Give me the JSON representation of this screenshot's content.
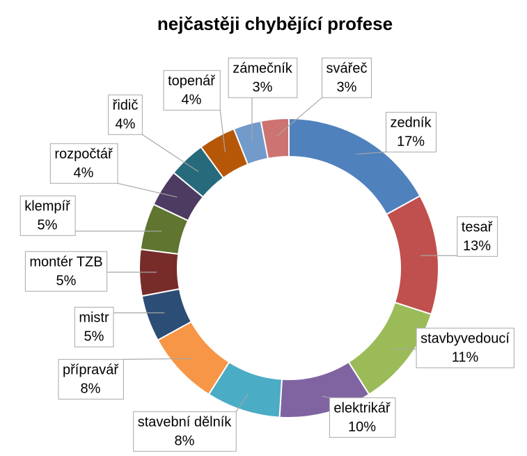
{
  "chart_data": {
    "type": "donut",
    "title": "nejčastěji chybějící profese",
    "categories": [
      "zedník",
      "tesař",
      "stavbyvedoucí",
      "elektrikář",
      "stavební dělník",
      "přípravář",
      "mistr",
      "montér TZB",
      "klempíř",
      "rozpočtář",
      "řidič",
      "topenář",
      "zámečník",
      "svářeč"
    ],
    "values": [
      17,
      13,
      11,
      10,
      8,
      8,
      5,
      5,
      5,
      4,
      4,
      4,
      3,
      3
    ],
    "value_labels": [
      "17%",
      "13%",
      "11%",
      "10%",
      "8%",
      "8%",
      "5%",
      "5%",
      "5%",
      "4%",
      "4%",
      "4%",
      "3%",
      "3%"
    ],
    "colors": [
      "#4f81bd",
      "#c0504d",
      "#9bbb59",
      "#8064a2",
      "#4bacc6",
      "#f79646",
      "#2c4d75",
      "#772c2a",
      "#5f7530",
      "#4d3b62",
      "#276a7c",
      "#b65708",
      "#729aca",
      "#cd7371"
    ]
  }
}
